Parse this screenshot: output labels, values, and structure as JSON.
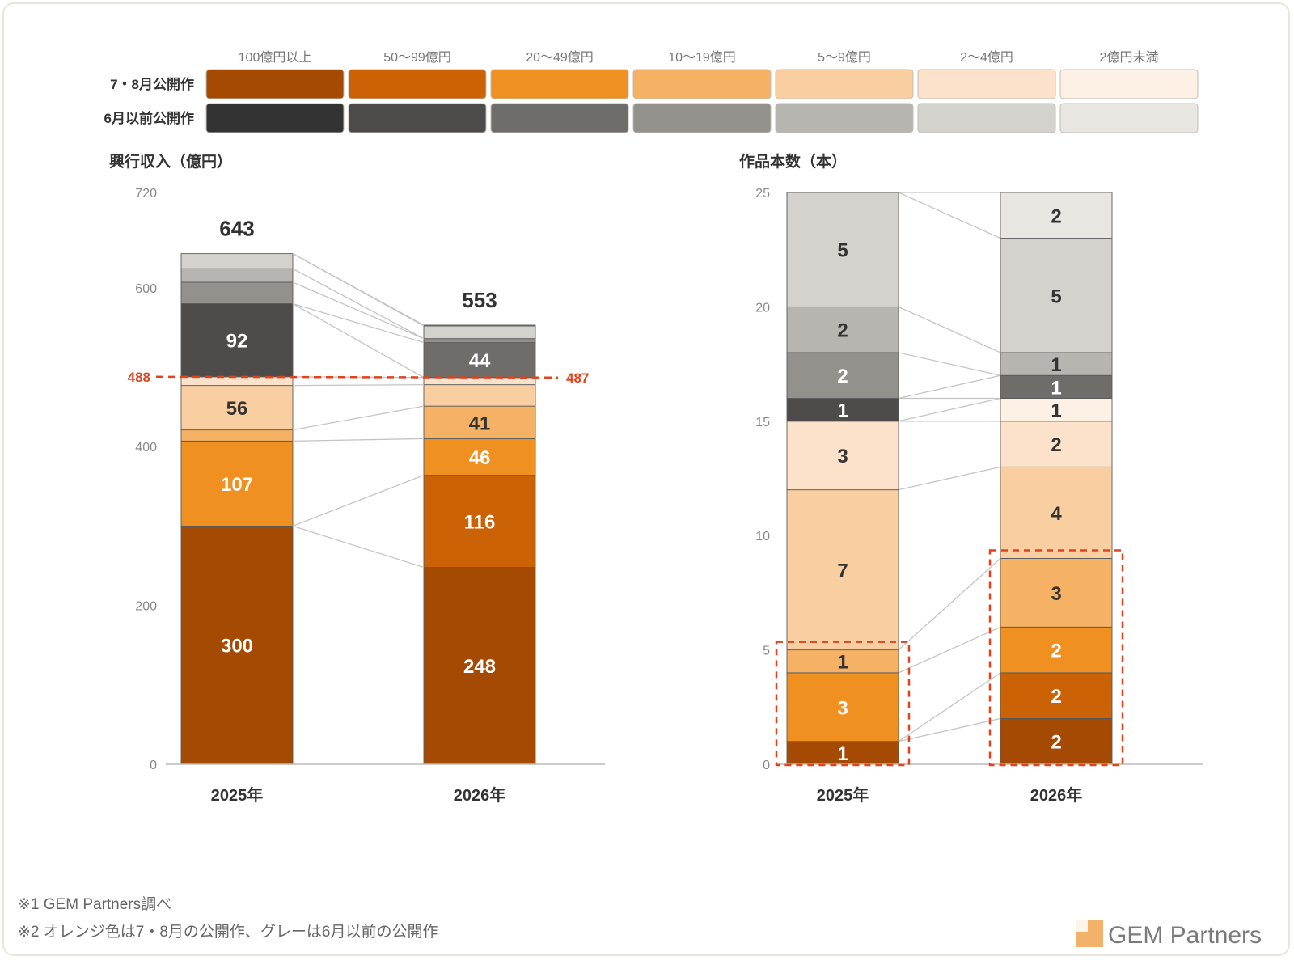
{
  "legend": {
    "categories": [
      "100億円以上",
      "50〜99億円",
      "20〜49億円",
      "10〜19億円",
      "5〜9億円",
      "2〜4億円",
      "2億円未満"
    ],
    "rows": [
      {
        "label": "7・8月公開作",
        "colors": [
          "#a54a02",
          "#cb6206",
          "#ef9020",
          "#f5b265",
          "#f9cfa2",
          "#fce2cb",
          "#fdf1e5"
        ]
      },
      {
        "label": "6月以前公開作",
        "colors": [
          "#333333",
          "#4d4c4a",
          "#6e6d69",
          "#92918b",
          "#b6b5af",
          "#d3d2cc",
          "#e7e6e1"
        ]
      }
    ]
  },
  "chart_data": [
    {
      "type": "bar",
      "stacked": true,
      "title": "興行収入（億円）",
      "categories": [
        "2025年",
        "2026年"
      ],
      "ylim": [
        0,
        720
      ],
      "yticks": [
        0,
        200,
        400,
        600,
        720
      ],
      "totals": [
        643,
        553
      ],
      "series": [
        {
          "color": "#a54a02",
          "values": [
            300,
            248
          ],
          "labels": [
            "300",
            "248"
          ]
        },
        {
          "color": "#cb6206",
          "values": [
            0,
            116
          ],
          "labels": [
            "",
            "116"
          ]
        },
        {
          "color": "#ef9020",
          "values": [
            107,
            46
          ],
          "labels": [
            "107",
            "46"
          ]
        },
        {
          "color": "#f5b265",
          "values": [
            14,
            41
          ],
          "labels": [
            "",
            "41"
          ]
        },
        {
          "color": "#f9cfa2",
          "values": [
            56,
            27
          ],
          "labels": [
            "56",
            ""
          ]
        },
        {
          "color": "#fce2cb",
          "values": [
            11,
            9
          ],
          "labels": [
            "",
            ""
          ]
        },
        {
          "color": "#fdf1e5",
          "values": [
            0,
            0
          ],
          "labels": [
            "",
            ""
          ]
        },
        {
          "color": "#333333",
          "values": [
            0,
            0
          ],
          "labels": [
            "",
            ""
          ]
        },
        {
          "color": "#4d4c4a",
          "values": [
            92,
            0
          ],
          "labels": [
            "92",
            ""
          ]
        },
        {
          "color": "#6e6d69",
          "values": [
            0,
            44
          ],
          "labels": [
            "",
            "44"
          ]
        },
        {
          "color": "#92918b",
          "values": [
            27,
            5
          ],
          "labels": [
            "",
            ""
          ]
        },
        {
          "color": "#b6b5af",
          "values": [
            17,
            0
          ],
          "labels": [
            "",
            ""
          ]
        },
        {
          "color": "#d3d2cc",
          "values": [
            19,
            16
          ],
          "labels": [
            "",
            ""
          ]
        },
        {
          "color": "#e7e6e1",
          "values": [
            0,
            1
          ],
          "labels": [
            "",
            ""
          ]
        }
      ],
      "reference_lines": [
        {
          "label": "488",
          "value": 488
        },
        {
          "label": "487",
          "value": 487
        }
      ]
    },
    {
      "type": "bar",
      "stacked": true,
      "title": "作品本数（本）",
      "categories": [
        "2025年",
        "2026年"
      ],
      "ylim": [
        0,
        25
      ],
      "yticks": [
        0,
        5,
        10,
        15,
        20,
        25
      ],
      "series": [
        {
          "color": "#a54a02",
          "values": [
            1,
            2
          ],
          "labels": [
            "1",
            "2"
          ]
        },
        {
          "color": "#cb6206",
          "values": [
            0,
            2
          ],
          "labels": [
            "",
            "2"
          ]
        },
        {
          "color": "#ef9020",
          "values": [
            3,
            2
          ],
          "labels": [
            "3",
            "2"
          ]
        },
        {
          "color": "#f5b265",
          "values": [
            1,
            3
          ],
          "labels": [
            "1",
            "3"
          ]
        },
        {
          "color": "#f9cfa2",
          "values": [
            7,
            4
          ],
          "labels": [
            "7",
            "4"
          ]
        },
        {
          "color": "#fce2cb",
          "values": [
            3,
            2
          ],
          "labels": [
            "3",
            "2"
          ]
        },
        {
          "color": "#fdf1e5",
          "values": [
            0,
            1
          ],
          "labels": [
            "",
            "1"
          ]
        },
        {
          "color": "#333333",
          "values": [
            0,
            0
          ],
          "labels": [
            "",
            ""
          ]
        },
        {
          "color": "#4d4c4a",
          "values": [
            1,
            0
          ],
          "labels": [
            "1",
            ""
          ]
        },
        {
          "color": "#6e6d69",
          "values": [
            0,
            1
          ],
          "labels": [
            "",
            "1"
          ]
        },
        {
          "color": "#92918b",
          "values": [
            2,
            0
          ],
          "labels": [
            "2",
            ""
          ]
        },
        {
          "color": "#b6b5af",
          "values": [
            2,
            1
          ],
          "labels": [
            "2",
            "1"
          ]
        },
        {
          "color": "#d3d2cc",
          "values": [
            5,
            5
          ],
          "labels": [
            "5",
            "5"
          ]
        },
        {
          "color": "#e7e6e1",
          "values": [
            0,
            2
          ],
          "labels": [
            "",
            "2"
          ]
        }
      ],
      "highlights": [
        {
          "category": "2025年",
          "from": 0,
          "to": 5
        },
        {
          "category": "2026年",
          "from": 0,
          "to": 9
        }
      ]
    }
  ],
  "footnotes": [
    "※1 GEM Partners調べ",
    "※2 オレンジ色は7・8月の公開作、グレーは6月以前の公開作"
  ],
  "brand": {
    "name": "GEM Partners"
  }
}
